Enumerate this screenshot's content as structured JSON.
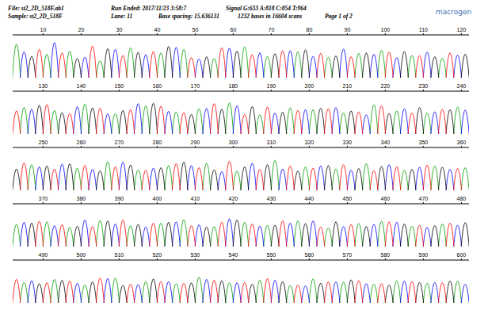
{
  "header": {
    "file": "File: st2_2D_518F.ab1",
    "run_ended": "Run Ended: 2017/11/23 3:58:7",
    "signal": "Signal G:633 A:818 C:854 T:964",
    "sample": "Sample: st2_2D_518F",
    "lane": "Lane: 11",
    "base_spacing": "Base spacing: 15.636131",
    "bases": "1232 bases in 16604 scans",
    "page": "Page 1 of 2",
    "logo": "macrogen"
  },
  "chart_data": [
    {
      "type": "line",
      "xlim": [
        2,
        122
      ],
      "xticks": [
        10,
        20,
        30,
        40,
        50,
        60,
        70,
        80,
        90,
        100,
        110,
        120
      ],
      "ylim": [
        0,
        100
      ],
      "tick_labels": "x",
      "series": [
        {
          "color": "#00a000",
          "x": [
            3,
            11,
            17,
            25,
            33,
            41,
            47,
            55,
            63,
            69,
            77,
            85,
            93,
            99,
            107,
            115
          ],
          "values": [
            78,
            55,
            62,
            40,
            70,
            58,
            66,
            45,
            72,
            50,
            61,
            48,
            57,
            64,
            52,
            46
          ]
        },
        {
          "color": "#0000ff",
          "x": [
            5,
            13,
            21,
            29,
            37,
            45,
            51,
            59,
            67,
            75,
            81,
            89,
            97,
            103,
            111,
            119
          ],
          "values": [
            60,
            82,
            48,
            66,
            54,
            71,
            44,
            69,
            58,
            63,
            50,
            67,
            55,
            47,
            60,
            53
          ]
        },
        {
          "color": "#000000",
          "x": [
            7,
            19,
            27,
            35,
            43,
            53,
            61,
            71,
            79,
            87,
            95,
            105,
            113,
            121
          ],
          "values": [
            50,
            45,
            68,
            59,
            73,
            49,
            62,
            56,
            65,
            51,
            58,
            61,
            49,
            55
          ]
        },
        {
          "color": "#ff0000",
          "x": [
            9,
            15,
            23,
            31,
            39,
            49,
            57,
            65,
            73,
            83,
            91,
            101,
            109,
            117
          ],
          "values": [
            66,
            58,
            74,
            52,
            61,
            47,
            70,
            54,
            63,
            57,
            49,
            60,
            52,
            58
          ]
        }
      ]
    },
    {
      "type": "line",
      "xlim": [
        122,
        242
      ],
      "xticks": [
        130,
        140,
        150,
        160,
        170,
        180,
        190,
        200,
        210,
        220,
        230,
        240
      ],
      "ylim": [
        0,
        100
      ],
      "tick_labels": "x",
      "series": [
        {
          "color": "#00a000",
          "x": [
            125,
            133,
            141,
            149,
            157,
            165,
            171,
            179,
            187,
            195,
            201,
            209,
            217,
            223,
            231,
            239
          ],
          "values": [
            62,
            55,
            70,
            48,
            66,
            52,
            59,
            73,
            45,
            61,
            57,
            50,
            68,
            54,
            49,
            63
          ]
        },
        {
          "color": "#0000ff",
          "x": [
            127,
            139,
            147,
            155,
            163,
            173,
            181,
            191,
            199,
            207,
            215,
            225,
            233,
            241
          ],
          "values": [
            58,
            64,
            47,
            71,
            53,
            60,
            66,
            49,
            57,
            62,
            45,
            59,
            52,
            56
          ]
        },
        {
          "color": "#000000",
          "x": [
            129,
            135,
            143,
            151,
            159,
            169,
            177,
            185,
            193,
            203,
            211,
            221,
            229,
            237
          ],
          "values": [
            67,
            50,
            61,
            55,
            72,
            46,
            58,
            64,
            51,
            60,
            54,
            48,
            62,
            57
          ]
        },
        {
          "color": "#ff0000",
          "x": [
            123,
            131,
            137,
            145,
            153,
            161,
            167,
            175,
            183,
            189,
            197,
            205,
            213,
            219,
            227,
            235
          ],
          "values": [
            54,
            69,
            48,
            60,
            57,
            65,
            50,
            71,
            46,
            63,
            55,
            59,
            52,
            66,
            49,
            58
          ]
        }
      ]
    },
    {
      "type": "line",
      "xlim": [
        242,
        362
      ],
      "xticks": [
        250,
        260,
        270,
        280,
        290,
        300,
        310,
        320,
        330,
        340,
        350,
        360
      ],
      "ylim": [
        0,
        100
      ],
      "tick_labels": "x",
      "series": [
        {
          "color": "#00a000",
          "x": [
            247,
            259,
            267,
            275,
            283,
            293,
            301,
            311,
            319,
            327,
            335,
            345,
            353,
            361
          ],
          "values": [
            60,
            52,
            67,
            48,
            58,
            63,
            45,
            70,
            55,
            50,
            62,
            47,
            57,
            53
          ]
        },
        {
          "color": "#0000ff",
          "x": [
            249,
            255,
            263,
            271,
            279,
            289,
            297,
            305,
            313,
            323,
            331,
            341,
            349,
            357
          ],
          "values": [
            55,
            61,
            49,
            66,
            52,
            58,
            44,
            63,
            50,
            57,
            47,
            60,
            54,
            49
          ]
        },
        {
          "color": "#000000",
          "x": [
            243,
            251,
            257,
            265,
            273,
            281,
            287,
            295,
            303,
            309,
            317,
            325,
            333,
            339,
            347,
            355
          ],
          "values": [
            50,
            57,
            62,
            46,
            59,
            53,
            66,
            48,
            55,
            60,
            45,
            58,
            51,
            56,
            49,
            54
          ]
        },
        {
          "color": "#ff0000",
          "x": [
            245,
            253,
            261,
            269,
            277,
            285,
            291,
            299,
            307,
            315,
            321,
            329,
            337,
            343,
            351,
            359
          ],
          "values": [
            64,
            50,
            58,
            55,
            47,
            62,
            53,
            68,
            49,
            57,
            52,
            60,
            46,
            55,
            59,
            51
          ]
        }
      ]
    },
    {
      "type": "line",
      "xlim": [
        362,
        482
      ],
      "xticks": [
        370,
        380,
        390,
        400,
        410,
        420,
        430,
        440,
        450,
        460,
        470,
        480
      ],
      "ylim": [
        0,
        100
      ],
      "tick_labels": "x",
      "series": [
        {
          "color": "#00a000",
          "x": [
            363,
            371,
            377,
            385,
            393,
            401,
            407,
            415,
            423,
            429,
            437,
            445,
            453,
            459,
            467,
            475
          ],
          "values": [
            52,
            58,
            45,
            61,
            49,
            55,
            63,
            47,
            57,
            50,
            60,
            44,
            54,
            59,
            48,
            53
          ]
        },
        {
          "color": "#0000ff",
          "x": [
            365,
            373,
            381,
            389,
            397,
            405,
            411,
            419,
            427,
            435,
            441,
            449,
            457,
            463,
            471,
            479
          ],
          "values": [
            57,
            49,
            62,
            53,
            46,
            58,
            51,
            65,
            48,
            55,
            60,
            47,
            52,
            57,
            45,
            50
          ]
        },
        {
          "color": "#000000",
          "x": [
            367,
            379,
            387,
            395,
            403,
            413,
            421,
            431,
            439,
            447,
            455,
            465,
            473,
            481
          ],
          "values": [
            55,
            48,
            60,
            52,
            57,
            46,
            62,
            50,
            54,
            58,
            47,
            53,
            49,
            56
          ]
        },
        {
          "color": "#ff0000",
          "x": [
            369,
            375,
            383,
            391,
            399,
            409,
            417,
            425,
            433,
            443,
            451,
            461,
            469,
            477
          ],
          "values": [
            59,
            51,
            47,
            62,
            55,
            49,
            57,
            53,
            60,
            46,
            52,
            58,
            50,
            55
          ]
        }
      ]
    },
    {
      "type": "line",
      "xlim": [
        482,
        602
      ],
      "xticks": [
        490,
        500,
        510,
        520,
        530,
        540,
        550,
        560,
        570,
        580,
        590,
        600
      ],
      "ylim": [
        0,
        100
      ],
      "tick_labels": "x",
      "series": [
        {
          "color": "#00a000",
          "x": [
            485,
            493,
            501,
            509,
            517,
            525,
            531,
            539,
            547,
            555,
            561,
            569,
            577,
            583,
            591,
            599
          ],
          "values": [
            48,
            55,
            42,
            58,
            50,
            45,
            60,
            47,
            53,
            41,
            56,
            49,
            44,
            52,
            46,
            51
          ]
        },
        {
          "color": "#0000ff",
          "x": [
            487,
            499,
            507,
            515,
            523,
            533,
            541,
            551,
            559,
            567,
            575,
            585,
            593,
            601
          ],
          "values": [
            52,
            46,
            57,
            43,
            50,
            55,
            47,
            53,
            40,
            49,
            45,
            51,
            48,
            44
          ]
        },
        {
          "color": "#000000",
          "x": [
            489,
            495,
            503,
            511,
            519,
            529,
            537,
            545,
            553,
            563,
            571,
            581,
            589,
            597
          ],
          "values": [
            45,
            53,
            49,
            41,
            56,
            47,
            52,
            44,
            50,
            46,
            54,
            42,
            48,
            51
          ]
        },
        {
          "color": "#ff0000",
          "x": [
            483,
            491,
            497,
            505,
            513,
            521,
            527,
            535,
            543,
            549,
            557,
            565,
            573,
            579,
            587,
            595
          ],
          "values": [
            55,
            47,
            51,
            58,
            44,
            50,
            46,
            53,
            48,
            57,
            42,
            49,
            52,
            45,
            50,
            47
          ]
        }
      ]
    }
  ]
}
